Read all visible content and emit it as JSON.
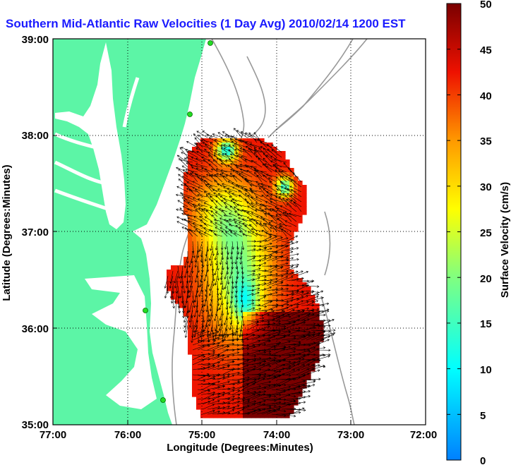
{
  "title": "Southern Mid-Atlantic Raw Velocities (1 Day Avg) 2010/02/14 1200 EST",
  "map": {
    "xlabel": "Longitude (Degrees:Minutes)",
    "ylabel": "Latitude (Degrees:Minutes)",
    "x_ticks": [
      "77:00",
      "76:00",
      "75:00",
      "74:00",
      "73:00",
      "72:00"
    ],
    "y_ticks": [
      "39:00",
      "38:00",
      "37:00",
      "36:00",
      "35:00"
    ],
    "lon_range": [
      -77,
      -72
    ],
    "lat_range": [
      35,
      39
    ],
    "grid": "dotted",
    "land_color": "#5cf5a6",
    "contour_color": "#999999"
  },
  "colorbar": {
    "label": "Surface Velocity (cm/s)",
    "ticks": [
      "50",
      "45",
      "40",
      "35",
      "30",
      "25",
      "20",
      "15",
      "10",
      "5",
      "0"
    ],
    "range": [
      0,
      50
    ],
    "colormap": "jet"
  }
}
